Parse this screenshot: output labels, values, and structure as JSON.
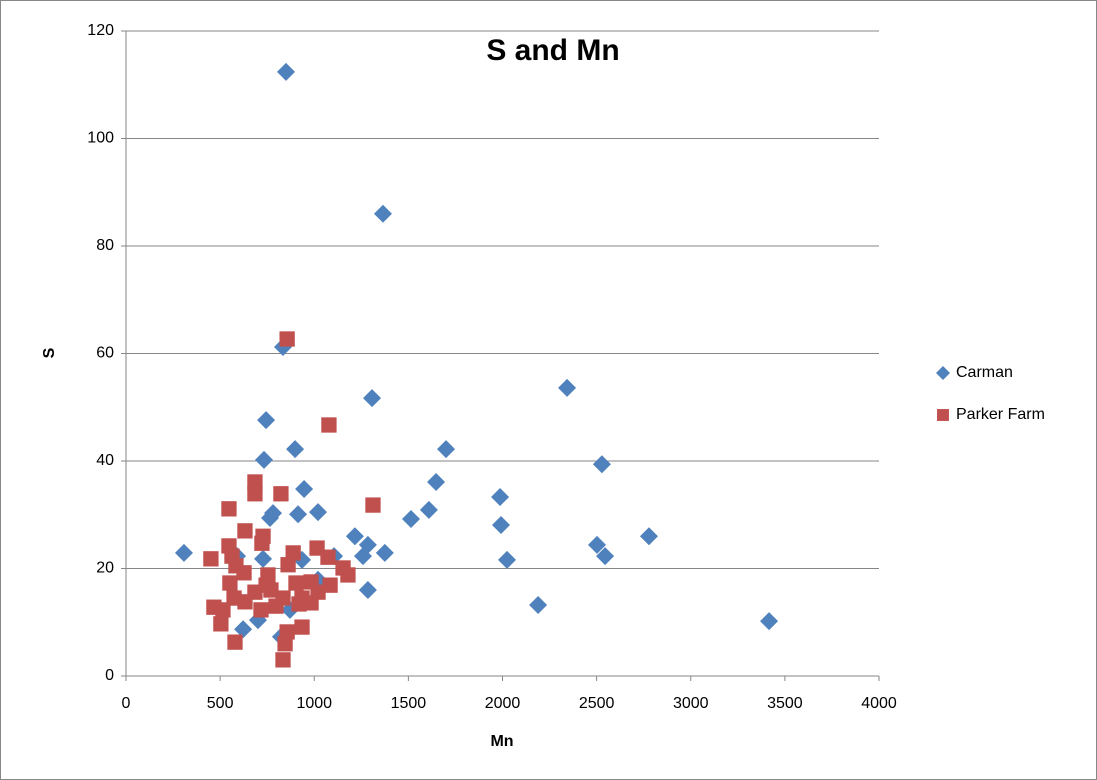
{
  "chart_data": {
    "type": "scatter",
    "title": "S and Mn",
    "x_label": "Mn",
    "y_label": "S",
    "xlim": [
      0,
      4000
    ],
    "xticks": [
      0,
      500,
      1000,
      1500,
      2000,
      2500,
      3000,
      3500,
      4000
    ],
    "ylim": [
      0,
      120
    ],
    "yticks": [
      0,
      20,
      40,
      60,
      80,
      100,
      120
    ],
    "grid": true,
    "legend": "right",
    "series": [
      {
        "name": "Carman",
        "color": "#4f81bd",
        "marker": "diamond",
        "x": [
          850,
          1365,
          834,
          1307,
          2343,
          744,
          733,
          898,
          1700,
          1647,
          946,
          2528,
          1987,
          1609,
          1020,
          914,
          781,
          765,
          1514,
          1992,
          1216,
          2778,
          2502,
          1285,
          1259,
          2545,
          1375,
          2024,
          308,
          728,
          935,
          1105,
          1285,
          2189,
          3416,
          622,
          701,
          1020,
          823,
          871,
          590
        ],
        "values": [
          112.4,
          86,
          61.2,
          51.7,
          53.6,
          47.6,
          40.2,
          42.2,
          42.2,
          36.1,
          34.8,
          39.4,
          33.3,
          30.9,
          30.5,
          30.1,
          30.3,
          29.4,
          29.2,
          28.1,
          26.0,
          26.0,
          24.4,
          24.4,
          22.3,
          22.3,
          22.9,
          21.6,
          22.9,
          21.8,
          21.6,
          22.3,
          16.0,
          13.2,
          10.2,
          8.7,
          10.4,
          17.9,
          7.3,
          12.3,
          22.3
        ]
      },
      {
        "name": "Parker Farm",
        "color": "#c0504d",
        "marker": "square",
        "x": [
          856,
          1078,
          1312,
          823,
          547,
          685,
          685,
          632,
          728,
          722,
          547,
          1015,
          888,
          1073,
          563,
          451,
          584,
          861,
          1153,
          1179,
          754,
          627,
          552,
          903,
          983,
          744,
          1084,
          770,
          685,
          1020,
          574,
          834,
          935,
          632,
          983,
          467,
          515,
          717,
          797,
          919,
          504,
          935,
          856,
          845,
          579,
          834
        ],
        "values": [
          62.7,
          46.7,
          31.8,
          33.9,
          31.1,
          36.1,
          33.9,
          27.0,
          26.0,
          24.7,
          24.2,
          23.8,
          22.9,
          22.1,
          22.3,
          21.8,
          20.5,
          20.7,
          20.1,
          18.8,
          18.8,
          19.2,
          17.3,
          17.3,
          17.5,
          16.9,
          16.9,
          16.0,
          15.6,
          15.6,
          14.5,
          14.5,
          14.5,
          13.8,
          13.6,
          12.8,
          12.3,
          12.3,
          13.0,
          13.4,
          9.7,
          9.1,
          8.2,
          6.0,
          6.3,
          3.0
        ]
      }
    ]
  }
}
